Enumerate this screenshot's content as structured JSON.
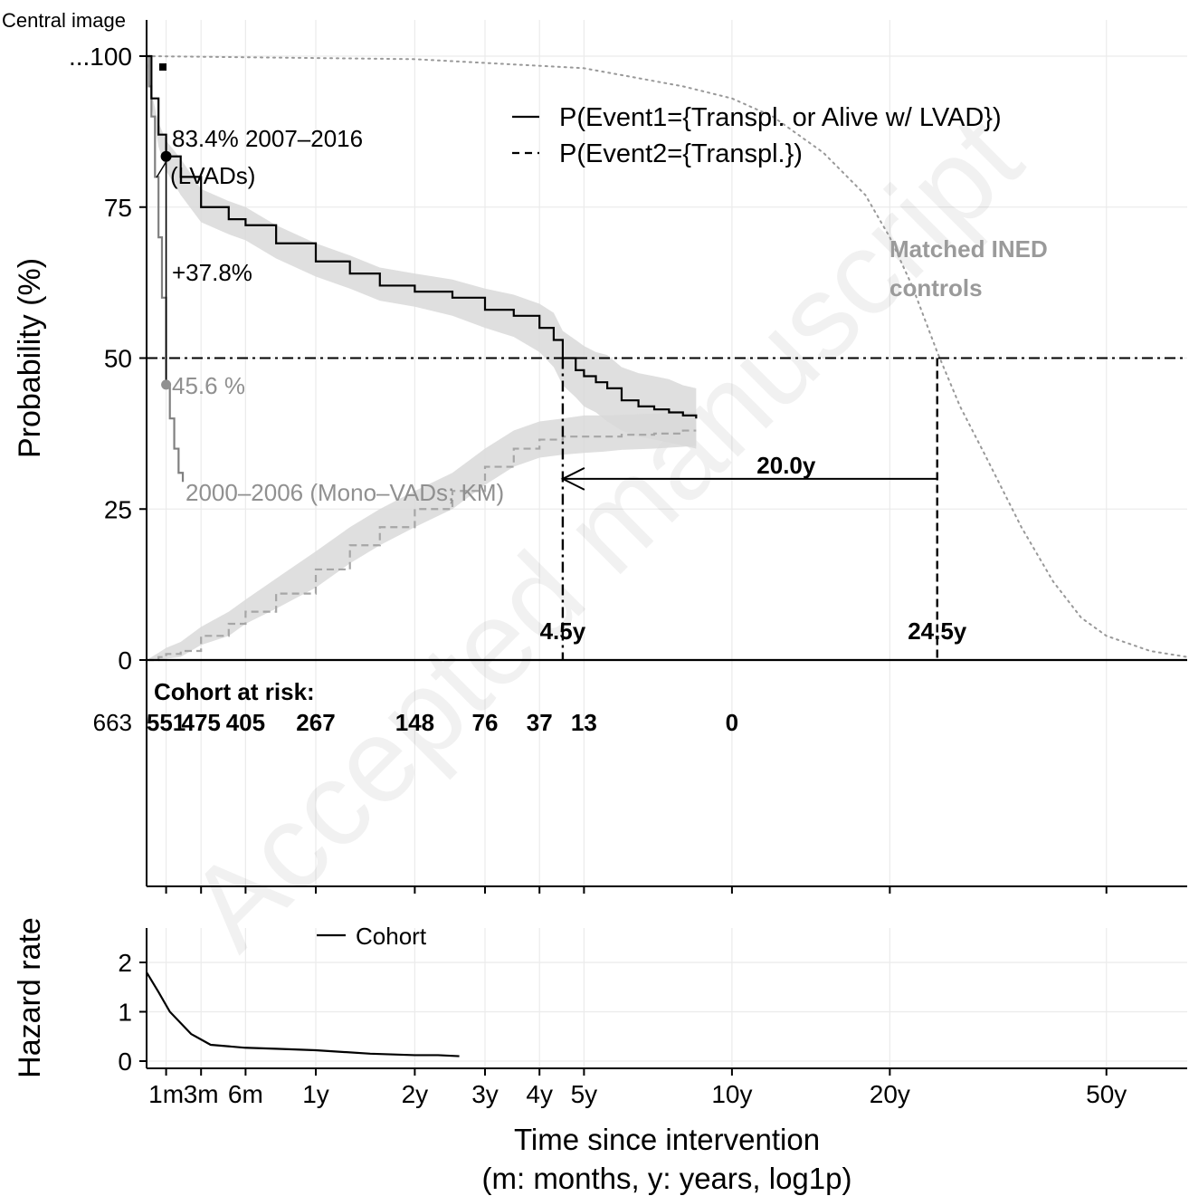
{
  "figure_label": "Central image",
  "watermark": "Accepted manuscript",
  "chart_data": [
    {
      "type": "line",
      "panel": "survival",
      "ylabel": "Probability (%)",
      "ylim": [
        0,
        100
      ],
      "y_ticks": [
        0,
        25,
        50,
        75,
        100
      ],
      "y_tick_labels": [
        "0",
        "25",
        "50",
        "75",
        "...100"
      ],
      "x_scale": "log1p (years)",
      "x_ticks_years": [
        0.0833,
        0.25,
        0.5,
        1,
        2,
        3,
        4,
        5,
        10,
        20,
        50
      ],
      "x_tick_labels": [
        "1m",
        "3m",
        "6m",
        "1y",
        "2y",
        "3y",
        "4y",
        "5y",
        "10y",
        "20y",
        "50y"
      ],
      "grid": true,
      "legend_position": "top-right",
      "legend": [
        {
          "label": "P(Event1={Transpl. or Alive w/ LVAD})",
          "style": "solid"
        },
        {
          "label": "P(Event2={Transpl.})",
          "style": "dashed"
        }
      ],
      "series": [
        {
          "name": "P(Event1={Transpl. or Alive w/ LVAD})",
          "style": "solid",
          "color": "#000000",
          "x": [
            0,
            0.02,
            0.05,
            0.0833,
            0.15,
            0.25,
            0.4,
            0.5,
            0.7,
            1.0,
            1.3,
            1.6,
            2.0,
            2.5,
            3.0,
            3.5,
            4.0,
            4.3,
            4.5,
            4.8,
            5.0,
            5.3,
            5.6,
            6.0,
            6.5,
            7.0,
            7.5,
            8.0,
            8.5
          ],
          "y": [
            100,
            93,
            87,
            83.4,
            80,
            75,
            73,
            72,
            69,
            66,
            64,
            62,
            61,
            60,
            58,
            57,
            55,
            53,
            50,
            48,
            47,
            46,
            45,
            43,
            42,
            41.5,
            41,
            40.5,
            40
          ],
          "ci_lower": [
            100,
            92,
            85,
            81,
            77,
            72.5,
            70.5,
            69.5,
            66.5,
            63.5,
            61.5,
            59.5,
            58.5,
            57,
            55,
            53.5,
            51,
            48.5,
            45.5,
            43.5,
            42,
            41,
            39.5,
            38,
            37,
            36.5,
            36,
            35.5,
            35
          ],
          "ci_upper": [
            100,
            94,
            89,
            86,
            83,
            78,
            76,
            75,
            72,
            69,
            67,
            65,
            64,
            63,
            61.5,
            60.5,
            59,
            57.5,
            54.5,
            53,
            52,
            51,
            50.5,
            48.5,
            47.5,
            47,
            46.5,
            45.5,
            45
          ]
        },
        {
          "name": "P(Event2={Transpl.})",
          "style": "dashed",
          "color": "#a6a6a6",
          "x": [
            0,
            0.05,
            0.0833,
            0.15,
            0.25,
            0.4,
            0.5,
            0.7,
            1.0,
            1.3,
            1.6,
            2.0,
            2.5,
            3.0,
            3.5,
            4.0,
            4.5,
            5.0,
            5.5,
            6.0,
            7.0,
            8.0,
            8.5
          ],
          "y": [
            0,
            0.5,
            1,
            1.5,
            4,
            6,
            8,
            11,
            15,
            19,
            22,
            25,
            28,
            32,
            35,
            36.5,
            37,
            37,
            37,
            37.3,
            37.5,
            38,
            38
          ],
          "ci_lower": [
            0,
            0,
            0.2,
            0.5,
            2.5,
            4,
            6,
            8.5,
            12,
            16,
            19,
            22,
            25,
            29,
            32,
            33.5,
            34,
            34.3,
            34.5,
            34.8,
            35,
            35.3,
            35.5
          ],
          "ci_upper": [
            0,
            1.2,
            2,
            3,
            5.5,
            8,
            10,
            13.5,
            18,
            22,
            25,
            28,
            31,
            35,
            38,
            39.5,
            40,
            40.5,
            40.5,
            40.6,
            40.8,
            41,
            41
          ]
        },
        {
          "name": "2000–2006 (Mono–VADs; KM)",
          "style": "solid",
          "color": "#808080",
          "x": [
            0,
            0.01,
            0.02,
            0.035,
            0.05,
            0.065,
            0.0833,
            0.1,
            0.12,
            0.14,
            0.16
          ],
          "y": [
            100,
            95,
            90,
            80,
            70,
            60,
            45.6,
            40,
            35,
            31,
            29.5
          ]
        },
        {
          "name": "Matched INED controls",
          "style": "dotted",
          "color": "#999999",
          "x": [
            0,
            2,
            5,
            8,
            10,
            12,
            15,
            18,
            20,
            22,
            24.5,
            27,
            30,
            35,
            40,
            45,
            50,
            60,
            70
          ],
          "y": [
            100,
            99.5,
            98,
            95,
            93,
            90,
            84,
            77,
            70,
            62,
            51,
            42,
            34,
            22,
            13,
            7,
            4,
            1.5,
            0.5
          ]
        }
      ],
      "annotations": {
        "lvad_point_label": "83.4% 2007–2016",
        "lvad_point_label2": "(LVADs)",
        "mono_point_label": "45.6 %",
        "mono_curve_label": "2000–2006 (Mono–VADs; KM)",
        "difference_label": "+37.8%",
        "controls_label_line1": "Matched INED",
        "controls_label_line2": "controls",
        "median_cohort_label": "4.5y",
        "median_controls_label": "24.5y",
        "gap_label": "20.0y",
        "median_cohort_years": 4.5,
        "median_controls_years": 24.5,
        "gap_years": 20.0,
        "reference_line_y": 50
      }
    },
    {
      "type": "table",
      "panel": "risk_table",
      "title": "Cohort at risk:",
      "x_years": [
        0,
        0.0833,
        0.25,
        0.5,
        1,
        2,
        3,
        4,
        5,
        10
      ],
      "values": [
        663,
        551,
        475,
        405,
        267,
        148,
        76,
        37,
        13,
        0
      ],
      "labels": [
        "663",
        "551",
        "475",
        "405",
        "267",
        "148",
        "76",
        "37",
        "13",
        "0"
      ]
    },
    {
      "type": "line",
      "panel": "hazard",
      "ylabel": "Hazard rate",
      "xlabel": "Time since intervention",
      "xlabel2": "(m: months, y: years, log1p)",
      "y_ticks": [
        0,
        1,
        2
      ],
      "y_tick_labels": [
        "0",
        "1",
        "2"
      ],
      "ylim": [
        0,
        2.6
      ],
      "legend": [
        {
          "label": "Cohort",
          "style": "solid"
        }
      ],
      "series": [
        {
          "name": "Cohort",
          "style": "solid",
          "color": "#000000",
          "x": [
            0,
            0.05,
            0.1,
            0.2,
            0.3,
            0.5,
            0.7,
            1.0,
            1.5,
            2.0,
            2.3,
            2.6
          ],
          "y": [
            1.8,
            1.4,
            1.0,
            0.55,
            0.33,
            0.27,
            0.25,
            0.22,
            0.15,
            0.12,
            0.12,
            0.1
          ]
        }
      ]
    }
  ]
}
